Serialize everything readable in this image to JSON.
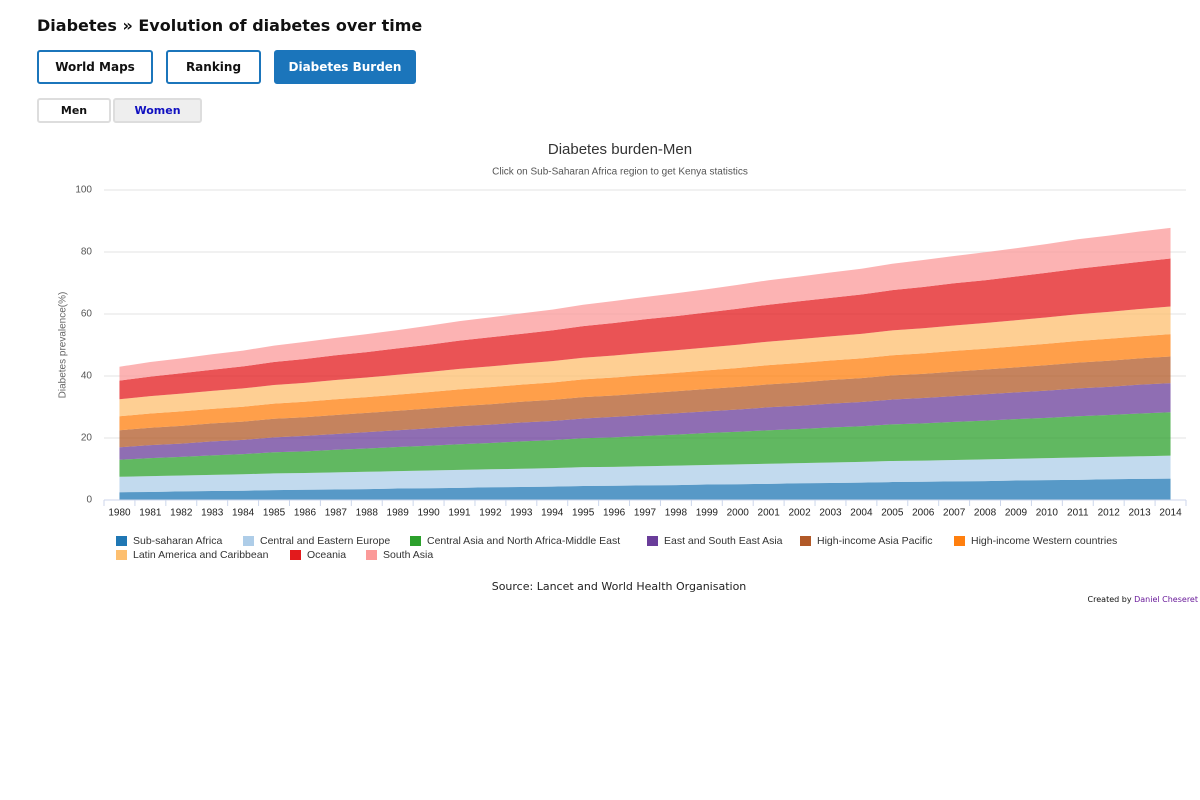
{
  "header": {
    "title": "Diabetes » Evolution of diabetes over time"
  },
  "tabs": [
    "World Maps",
    "Ranking",
    "Diabetes Burden"
  ],
  "gender_tabs": [
    "Men",
    "Women"
  ],
  "chart_data": {
    "type": "stacked-area",
    "title": "Diabetes burden-Men",
    "subtitle": "Click on Sub-Saharan Africa region to get Kenya statistics",
    "y_label": "Diabetes prevalence(%)",
    "categories": [
      "1980",
      "1981",
      "1982",
      "1983",
      "1984",
      "1985",
      "1986",
      "1987",
      "1988",
      "1989",
      "1990",
      "1991",
      "1992",
      "1993",
      "1994",
      "1995",
      "1996",
      "1997",
      "1998",
      "1999",
      "2000",
      "2001",
      "2002",
      "2003",
      "2004",
      "2005",
      "2006",
      "2007",
      "2008",
      "2009",
      "2010",
      "2011",
      "2012",
      "2013",
      "2014"
    ],
    "ylim": [
      0,
      100
    ],
    "yticks": [
      0,
      20,
      40,
      60,
      80,
      100
    ],
    "grid": true,
    "series": [
      {
        "name": "Sub-saharan Africa",
        "color": "#1f77b4",
        "values": [
          2.5,
          2.6,
          2.8,
          2.9,
          3.0,
          3.2,
          3.3,
          3.4,
          3.5,
          3.7,
          3.8,
          3.9,
          4.1,
          4.2,
          4.3,
          4.5,
          4.6,
          4.7,
          4.8,
          5.0,
          5.1,
          5.2,
          5.4,
          5.5,
          5.6,
          5.8,
          5.9,
          6.0,
          6.1,
          6.3,
          6.4,
          6.5,
          6.7,
          6.8,
          6.9
        ]
      },
      {
        "name": "Central and Eastern Europe",
        "color": "#aecde8",
        "values": [
          5.0,
          5.1,
          5.1,
          5.2,
          5.3,
          5.4,
          5.4,
          5.5,
          5.6,
          5.6,
          5.7,
          5.8,
          5.8,
          5.9,
          6.0,
          6.1,
          6.1,
          6.2,
          6.3,
          6.3,
          6.4,
          6.5,
          6.5,
          6.6,
          6.7,
          6.8,
          6.8,
          6.9,
          7.0,
          7.0,
          7.1,
          7.2,
          7.2,
          7.3,
          7.4
        ]
      },
      {
        "name": "Central Asia and North Africa-Middle East",
        "color": "#2ca02c",
        "values": [
          5.5,
          5.8,
          6.0,
          6.3,
          6.5,
          6.8,
          7.0,
          7.3,
          7.5,
          7.8,
          8.0,
          8.3,
          8.5,
          8.8,
          9.0,
          9.3,
          9.5,
          9.8,
          10.0,
          10.3,
          10.5,
          10.8,
          11.0,
          11.3,
          11.5,
          11.8,
          12.0,
          12.3,
          12.5,
          12.8,
          13.0,
          13.3,
          13.5,
          13.8,
          14.0
        ]
      },
      {
        "name": "East and South East Asia",
        "color": "#6a3d9a",
        "values": [
          4.0,
          4.2,
          4.3,
          4.5,
          4.6,
          4.8,
          5.0,
          5.1,
          5.3,
          5.4,
          5.6,
          5.8,
          5.9,
          6.1,
          6.2,
          6.4,
          6.6,
          6.7,
          6.9,
          7.0,
          7.2,
          7.4,
          7.5,
          7.7,
          7.8,
          8.0,
          8.2,
          8.3,
          8.5,
          8.6,
          8.8,
          9.0,
          9.1,
          9.3,
          9.4
        ]
      },
      {
        "name": "High-income Asia Pacific",
        "color": "#b15928",
        "values": [
          5.5,
          5.6,
          5.7,
          5.8,
          5.9,
          6.0,
          6.0,
          6.1,
          6.2,
          6.3,
          6.4,
          6.5,
          6.6,
          6.7,
          6.8,
          6.9,
          6.9,
          7.0,
          7.1,
          7.2,
          7.3,
          7.4,
          7.5,
          7.6,
          7.7,
          7.8,
          7.8,
          7.9,
          8.0,
          8.1,
          8.2,
          8.3,
          8.4,
          8.5,
          8.6
        ]
      },
      {
        "name": "High-income Western countries",
        "color": "#ff7f0e",
        "values": [
          4.5,
          4.6,
          4.7,
          4.7,
          4.8,
          4.9,
          5.0,
          5.1,
          5.1,
          5.2,
          5.3,
          5.4,
          5.5,
          5.5,
          5.6,
          5.7,
          5.8,
          5.9,
          5.9,
          6.0,
          6.1,
          6.2,
          6.3,
          6.3,
          6.4,
          6.5,
          6.6,
          6.7,
          6.7,
          6.8,
          6.9,
          7.0,
          7.1,
          7.1,
          7.2
        ]
      },
      {
        "name": "Latin America and Caribbean",
        "color": "#fdbf6f",
        "values": [
          5.5,
          5.6,
          5.7,
          5.8,
          5.9,
          6.0,
          6.1,
          6.2,
          6.3,
          6.4,
          6.5,
          6.6,
          6.7,
          6.8,
          6.9,
          7.0,
          7.1,
          7.2,
          7.3,
          7.4,
          7.5,
          7.6,
          7.7,
          7.8,
          7.9,
          8.0,
          8.1,
          8.2,
          8.3,
          8.4,
          8.5,
          8.6,
          8.7,
          8.8,
          8.9
        ]
      },
      {
        "name": "Oceania",
        "color": "#e31a1c",
        "values": [
          6.0,
          6.3,
          6.6,
          6.8,
          7.1,
          7.4,
          7.7,
          8.0,
          8.2,
          8.5,
          8.8,
          9.1,
          9.4,
          9.6,
          9.9,
          10.2,
          10.5,
          10.8,
          11.0,
          11.3,
          11.6,
          11.9,
          12.2,
          12.4,
          12.7,
          13.0,
          13.3,
          13.6,
          13.8,
          14.1,
          14.4,
          14.7,
          15.0,
          15.2,
          15.5
        ]
      },
      {
        "name": "South Asia",
        "color": "#fb9a99",
        "values": [
          4.5,
          4.7,
          4.8,
          5.0,
          5.1,
          5.3,
          5.5,
          5.6,
          5.8,
          5.9,
          6.1,
          6.3,
          6.4,
          6.6,
          6.7,
          6.9,
          7.1,
          7.2,
          7.4,
          7.5,
          7.7,
          7.9,
          8.0,
          8.2,
          8.3,
          8.5,
          8.7,
          8.8,
          9.0,
          9.1,
          9.3,
          9.5,
          9.6,
          9.8,
          9.9
        ]
      }
    ]
  },
  "source": "Source: Lancet and World Health Organisation",
  "credit": {
    "prefix": "Created by",
    "author": "Daniel Cheseret"
  }
}
